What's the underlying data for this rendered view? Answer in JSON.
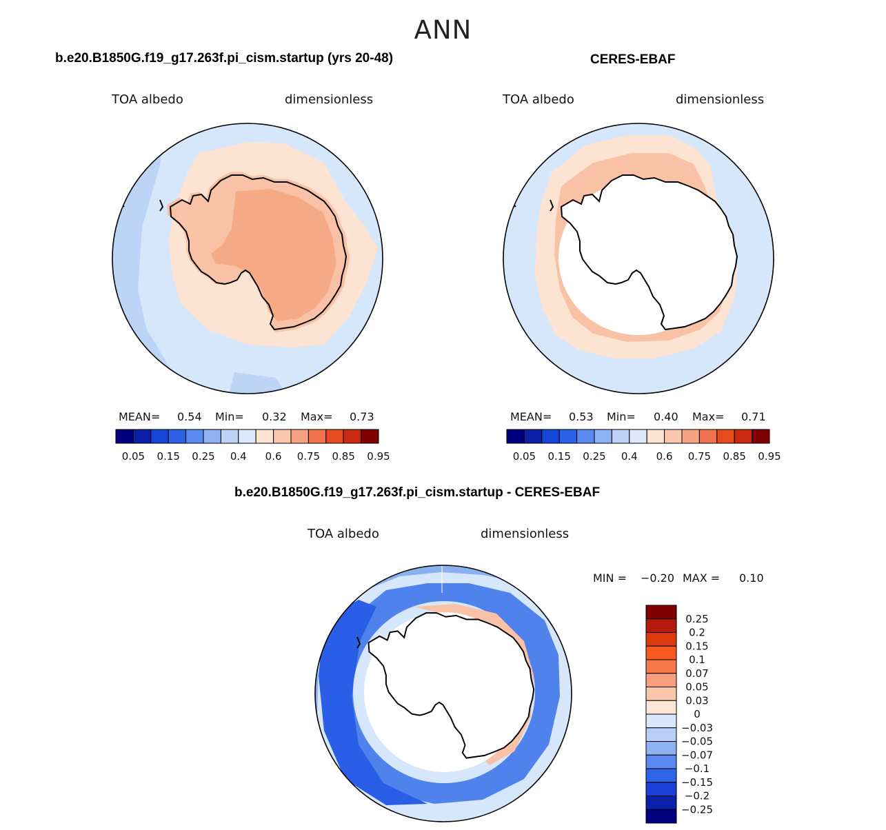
{
  "page_title": "ANN",
  "colors": {
    "ocean_light": "#d6e7fb",
    "ocean_blue": "#bcd4f6",
    "ice_pale": "#fde3d2",
    "ice_mid": "#f9c2a6",
    "ice_deep": "#f6a985",
    "ice_red": "#ee8a66",
    "diff_blue1": "#8ab0ee",
    "diff_blue2": "#4f82ea",
    "diff_blue3": "#2b5ee6",
    "diff_pale": "#d6e7fb",
    "coast": "#000000"
  },
  "panels": {
    "model": {
      "title": "b.e20.B1850G.f19_g17.263f.pi_cism.startup (yrs 20-48)",
      "variable": "TOA albedo",
      "units": "dimensionless",
      "stats": {
        "mean_label": "MEAN=",
        "mean": "0.54",
        "min_label": "Min=",
        "min": "0.32",
        "max_label": "Max=",
        "max": "0.73"
      }
    },
    "obs": {
      "title": "CERES-EBAF",
      "variable": "TOA albedo",
      "units": "dimensionless",
      "stats": {
        "mean_label": "MEAN=",
        "mean": "0.53",
        "min_label": "Min=",
        "min": "0.40",
        "max_label": "Max=",
        "max": "0.71"
      }
    },
    "diff": {
      "title": "b.e20.B1850G.f19_g17.263f.pi_cism.startup - CERES-EBAF",
      "variable": "TOA albedo",
      "units": "dimensionless",
      "stats": {
        "min_label": "MIN =",
        "min": "−0.20",
        "max_label": "MAX =",
        "max": "0.10"
      }
    }
  },
  "chart_data": [
    {
      "type": "heatmap",
      "projection": "south polar stereographic",
      "title": "b.e20.B1850G.f19_g17.263f.pi_cism.startup (yrs 20-48)",
      "variable": "TOA albedo",
      "units": "dimensionless",
      "mean": 0.54,
      "min": 0.32,
      "max": 0.73,
      "colorbar_levels": [
        "0.05",
        "0.15",
        "0.25",
        "0.4",
        "0.6",
        "0.75",
        "0.85",
        "0.95"
      ],
      "colorbar_colors": [
        "#00007f",
        "#0a1fa8",
        "#1644d7",
        "#2d62e8",
        "#5a8af0",
        "#8eb1f3",
        "#bcd3f7",
        "#dde9fb",
        "#fde3d2",
        "#fbc7ac",
        "#f6a384",
        "#f1744f",
        "#e84a1f",
        "#c8290f",
        "#7f0000"
      ]
    },
    {
      "type": "heatmap",
      "projection": "south polar stereographic",
      "title": "CERES-EBAF",
      "variable": "TOA albedo",
      "units": "dimensionless",
      "mean": 0.53,
      "min": 0.4,
      "max": 0.71,
      "colorbar_levels": [
        "0.05",
        "0.15",
        "0.25",
        "0.4",
        "0.6",
        "0.75",
        "0.85",
        "0.95"
      ],
      "colorbar_colors": [
        "#00007f",
        "#0a1fa8",
        "#1644d7",
        "#2d62e8",
        "#5a8af0",
        "#8eb1f3",
        "#bcd3f7",
        "#dde9fb",
        "#fde3d2",
        "#fbc7ac",
        "#f6a384",
        "#f1744f",
        "#e84a1f",
        "#c8290f",
        "#7f0000"
      ]
    },
    {
      "type": "heatmap",
      "projection": "south polar stereographic",
      "title": "b.e20.B1850G.f19_g17.263f.pi_cism.startup - CERES-EBAF",
      "variable": "TOA albedo",
      "units": "dimensionless",
      "min": -0.2,
      "max": 0.1,
      "colorbar_levels": [
        "0.25",
        "0.2",
        "0.15",
        "0.1",
        "0.07",
        "0.05",
        "0.03",
        "0",
        "−0.03",
        "−0.05",
        "−0.07",
        "−0.1",
        "−0.15",
        "−0.2",
        "−0.25"
      ],
      "colorbar_colors": [
        "#7f0000",
        "#b31a0b",
        "#de3a11",
        "#f75a1f",
        "#f57a4b",
        "#f8a07b",
        "#fbc6a9",
        "#fde6d6",
        "#d9e8fb",
        "#b7cff6",
        "#8eb1f1",
        "#5c8aee",
        "#3064e8",
        "#1a40d8",
        "#0a20a8",
        "#00007f"
      ]
    }
  ]
}
